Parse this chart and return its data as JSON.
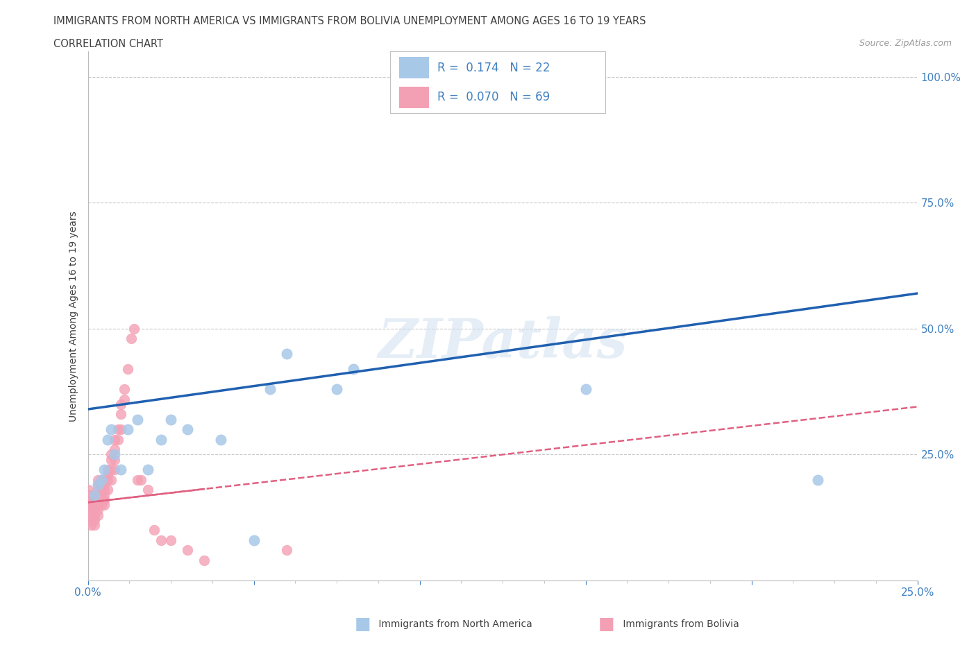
{
  "title_line1": "IMMIGRANTS FROM NORTH AMERICA VS IMMIGRANTS FROM BOLIVIA UNEMPLOYMENT AMONG AGES 16 TO 19 YEARS",
  "title_line2": "CORRELATION CHART",
  "source_text": "Source: ZipAtlas.com",
  "watermark": "ZIPatlas",
  "ylabel": "Unemployment Among Ages 16 to 19 years",
  "xlim": [
    0.0,
    0.25
  ],
  "ylim": [
    0.0,
    1.05
  ],
  "grid_color": "#c8c8c8",
  "background_color": "#ffffff",
  "north_america_color": "#a8c8e8",
  "bolivia_color": "#f4a0b4",
  "north_america_line_color": "#2060b0",
  "bolivia_line_color": "#e06080",
  "legend_R1": "0.174",
  "legend_N1": "22",
  "legend_R2": "0.070",
  "legend_N2": "69",
  "title_color": "#404040",
  "axis_color": "#4080c0",
  "na_x": [
    0.002,
    0.003,
    0.004,
    0.005,
    0.006,
    0.007,
    0.008,
    0.01,
    0.012,
    0.015,
    0.018,
    0.022,
    0.025,
    0.03,
    0.04,
    0.05,
    0.055,
    0.06,
    0.075,
    0.08,
    0.15,
    0.22
  ],
  "na_y": [
    0.17,
    0.19,
    0.2,
    0.22,
    0.28,
    0.3,
    0.25,
    0.22,
    0.3,
    0.32,
    0.22,
    0.28,
    0.32,
    0.3,
    0.28,
    0.08,
    0.38,
    0.45,
    0.38,
    0.42,
    0.38,
    0.2
  ],
  "bo_x": [
    0.0,
    0.0,
    0.0,
    0.0,
    0.001,
    0.001,
    0.001,
    0.001,
    0.001,
    0.001,
    0.001,
    0.002,
    0.002,
    0.002,
    0.002,
    0.002,
    0.002,
    0.002,
    0.003,
    0.003,
    0.003,
    0.003,
    0.003,
    0.003,
    0.003,
    0.003,
    0.004,
    0.004,
    0.004,
    0.004,
    0.004,
    0.004,
    0.005,
    0.005,
    0.005,
    0.005,
    0.005,
    0.005,
    0.006,
    0.006,
    0.006,
    0.006,
    0.007,
    0.007,
    0.007,
    0.007,
    0.008,
    0.008,
    0.008,
    0.008,
    0.009,
    0.009,
    0.01,
    0.01,
    0.01,
    0.011,
    0.011,
    0.012,
    0.013,
    0.014,
    0.015,
    0.016,
    0.018,
    0.02,
    0.022,
    0.025,
    0.03,
    0.035,
    0.06
  ],
  "bo_y": [
    0.18,
    0.17,
    0.16,
    0.15,
    0.17,
    0.16,
    0.15,
    0.14,
    0.13,
    0.12,
    0.11,
    0.17,
    0.16,
    0.15,
    0.14,
    0.13,
    0.12,
    0.11,
    0.2,
    0.19,
    0.18,
    0.17,
    0.16,
    0.15,
    0.14,
    0.13,
    0.2,
    0.19,
    0.18,
    0.17,
    0.16,
    0.15,
    0.2,
    0.19,
    0.18,
    0.17,
    0.16,
    0.15,
    0.22,
    0.21,
    0.2,
    0.18,
    0.25,
    0.24,
    0.22,
    0.2,
    0.28,
    0.26,
    0.24,
    0.22,
    0.3,
    0.28,
    0.35,
    0.33,
    0.3,
    0.38,
    0.36,
    0.42,
    0.48,
    0.5,
    0.2,
    0.2,
    0.18,
    0.1,
    0.08,
    0.08,
    0.06,
    0.04,
    0.06
  ],
  "na_line_x": [
    0.0,
    0.25
  ],
  "na_line_y": [
    0.34,
    0.57
  ],
  "bo_line_x": [
    0.0,
    0.25
  ],
  "bo_line_y": [
    0.155,
    0.345
  ]
}
